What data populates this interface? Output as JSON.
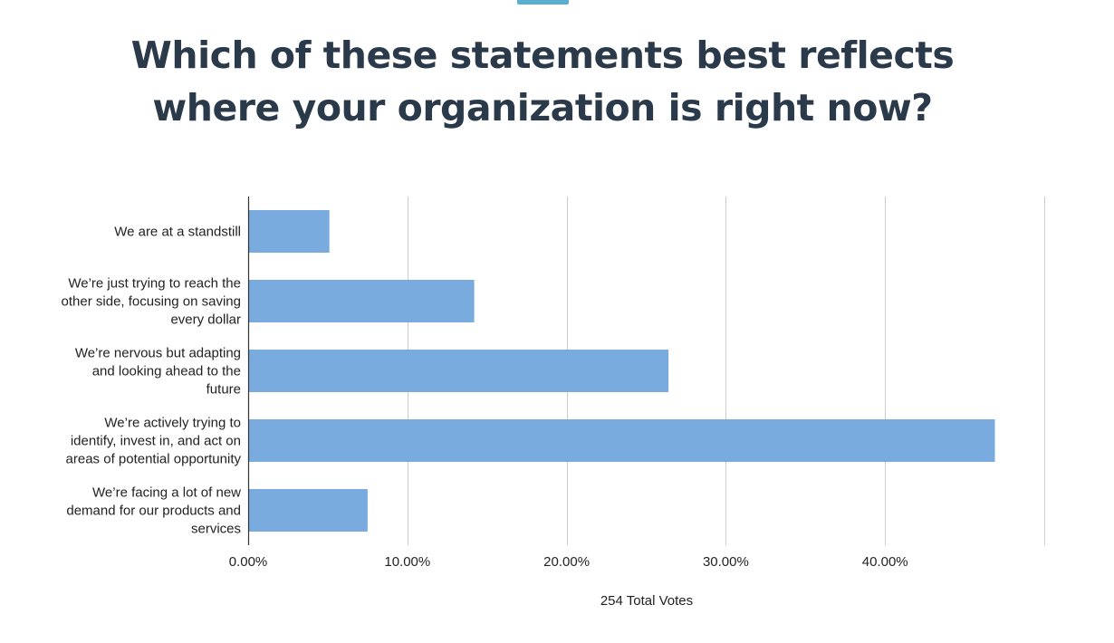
{
  "colors": {
    "accent": "#5aaed1",
    "title": "#2b3a4a",
    "bar": "#7aabdf",
    "grid": "#cccccc",
    "axis": "#333333"
  },
  "title_lines": [
    "Which of these statements best reflects",
    "where your organization is right now?"
  ],
  "chart_data": {
    "type": "bar",
    "orientation": "horizontal",
    "title": "Which of these statements best reflects where your organization is right now?",
    "categories": [
      "We are at a standstill",
      "We’re just trying to reach the other side, focusing on saving every dollar",
      "We’re nervous but adapting and looking ahead to the future",
      "We’re actively trying to identify, invest in, and act on areas of potential opportunity",
      "We’re facing a lot of new demand for our products and services"
    ],
    "category_label_lines": [
      [
        "We are at a standstill"
      ],
      [
        "We’re just trying to reach the",
        "other side, focusing on saving",
        "every dollar"
      ],
      [
        "We’re nervous but adapting",
        "and looking ahead to the",
        "future"
      ],
      [
        "We’re actively trying to",
        "identify, invest in, and act on",
        "areas of potential opportunity"
      ],
      [
        "We’re facing a lot of new",
        "demand for our products and",
        "services"
      ]
    ],
    "values": [
      5.1,
      14.2,
      26.4,
      46.9,
      7.5
    ],
    "xlim": [
      0,
      50
    ],
    "xticks": [
      0,
      10,
      20,
      30,
      40
    ],
    "tick_labels": [
      "0.00%",
      "10.00%",
      "20.00%",
      "30.00%",
      "40.00%"
    ],
    "xlabel": "254 Total Votes",
    "ylabel": "",
    "grid": true,
    "legend": "none"
  }
}
